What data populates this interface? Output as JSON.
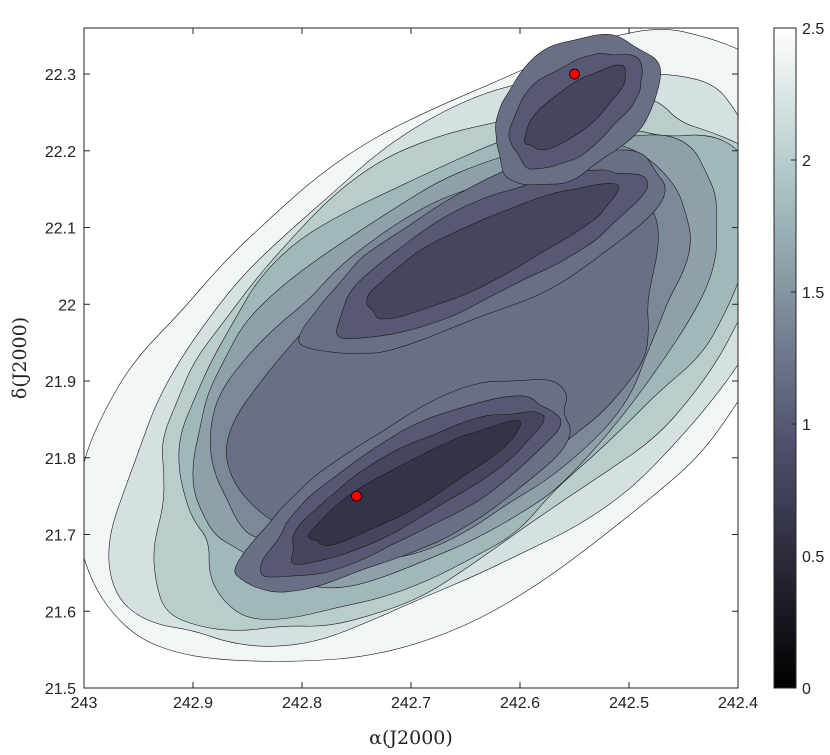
{
  "chart_data": {
    "type": "heatmap",
    "title": "",
    "xlabel": "α(J2000)",
    "ylabel": "δ(J2000)",
    "xlim": [
      243,
      242.4
    ],
    "ylim": [
      21.5,
      22.36
    ],
    "x_ticks": [
      243,
      242.9,
      242.8,
      242.7,
      242.6,
      242.5,
      242.4
    ],
    "x_tick_labels": [
      "243",
      "242.9",
      "242.8",
      "242.7",
      "242.6",
      "242.5",
      "242.4"
    ],
    "y_ticks": [
      21.5,
      21.6,
      21.7,
      21.8,
      21.9,
      22.0,
      22.1,
      22.2,
      22.3
    ],
    "y_tick_labels": [
      "21.5",
      "21.6",
      "21.7",
      "21.8",
      "21.9",
      "22",
      "22.1",
      "22.2",
      "22.3"
    ],
    "colorbar": {
      "range": [
        0,
        2.5
      ],
      "ticks": [
        0,
        0.5,
        1,
        1.5,
        2,
        2.5
      ],
      "tick_labels": [
        "0",
        "0.5",
        "1",
        "1.5",
        "2",
        "2.5"
      ],
      "colormap": "bone",
      "color_low": "#000000",
      "color_high": "#ffffff"
    },
    "contour_levels": [
      0.6,
      0.8,
      1.0,
      1.2,
      1.4,
      1.6,
      1.8,
      2.0,
      2.2,
      2.4
    ],
    "features": [
      {
        "kind": "filament",
        "x": [
          242.82,
          242.58
        ],
        "y": [
          21.67,
          21.86
        ],
        "min_value": 0.6
      },
      {
        "kind": "filament",
        "x": [
          242.76,
          242.5
        ],
        "y": [
          21.98,
          22.16
        ],
        "min_value": 0.7
      },
      {
        "kind": "filament",
        "x": [
          242.6,
          242.5
        ],
        "y": [
          22.2,
          22.31
        ],
        "min_value": 0.8
      }
    ],
    "markers": [
      {
        "x": 242.75,
        "y": 21.75,
        "color": "#ff0000"
      },
      {
        "x": 242.55,
        "y": 22.3,
        "color": "#ff0000"
      }
    ]
  }
}
